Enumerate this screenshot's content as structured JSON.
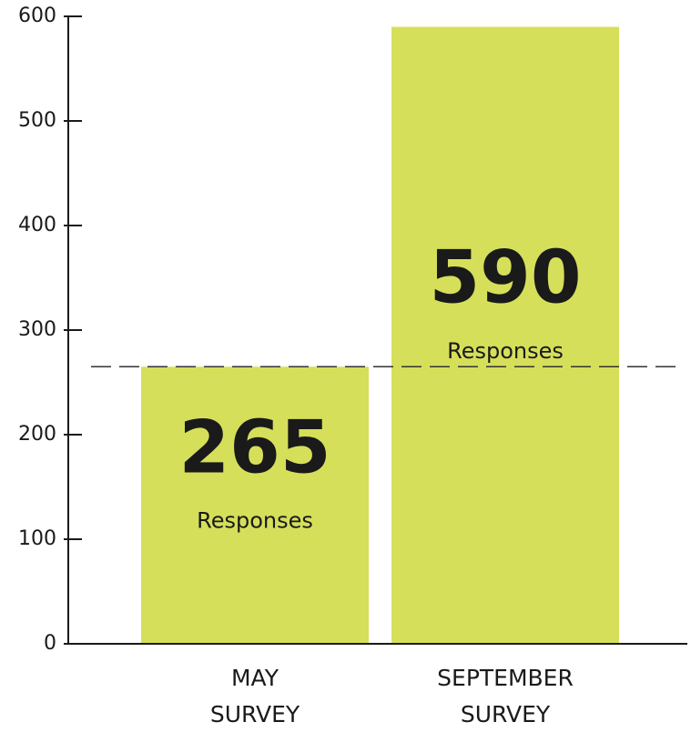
{
  "chart_data": {
    "type": "bar",
    "categories": [
      "MAY SURVEY",
      "SEPTEMBER SURVEY"
    ],
    "values": [
      265,
      590
    ],
    "value_caption": "Responses",
    "color": "#d5df5a",
    "ylim": [
      0,
      600
    ],
    "yticks": [
      0,
      100,
      200,
      300,
      400,
      500,
      600
    ],
    "reference_line": {
      "value": 265,
      "style": "dashed"
    }
  }
}
